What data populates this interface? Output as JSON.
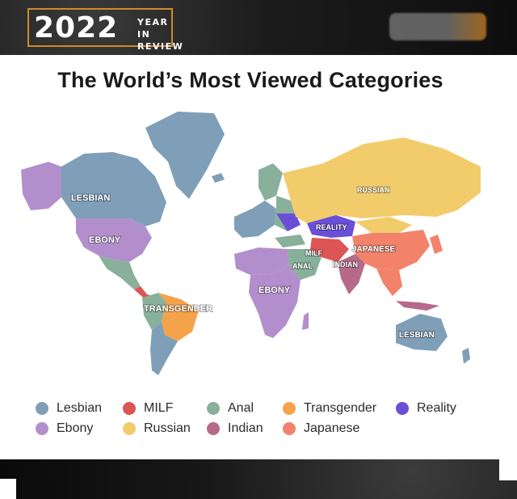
{
  "header": {
    "year": "2022",
    "subtitle_line1": "YEAR IN",
    "subtitle_line2": "REVIEW"
  },
  "title": "The World’s Most Viewed Categories",
  "colors": {
    "lesbian": "#7f9fb8",
    "milf": "#dd5555",
    "anal": "#88b09a",
    "transgender": "#f4a34a",
    "reality": "#6b4ed8",
    "ebony": "#b28fcc",
    "russian": "#f2cc6b",
    "indian": "#b46a88",
    "japanese": "#f2826a",
    "accent_orange": "#d08a2a"
  },
  "map_labels": {
    "lesbian_na": "LESBIAN",
    "ebony_us": "EBONY",
    "transgender_br": "TRANSGENDER",
    "russian": "RUSSIAN",
    "reality": "REALITY",
    "milf": "MILF",
    "anal": "ANAL",
    "indian": "INDIAN",
    "japanese": "JAPANESE",
    "ebony_af": "EBONY",
    "lesbian_au": "LESBIAN"
  },
  "legend": [
    {
      "label": "Lesbian",
      "color": "#7f9fb8"
    },
    {
      "label": "MILF",
      "color": "#dd5555"
    },
    {
      "label": "Anal",
      "color": "#88b09a"
    },
    {
      "label": "Transgender",
      "color": "#f4a34a"
    },
    {
      "label": "Reality",
      "color": "#6b4ed8"
    },
    {
      "label": "Ebony",
      "color": "#b28fcc"
    },
    {
      "label": "Russian",
      "color": "#f2cc6b"
    },
    {
      "label": "Indian",
      "color": "#b46a88"
    },
    {
      "label": "Japanese",
      "color": "#f2826a"
    }
  ]
}
